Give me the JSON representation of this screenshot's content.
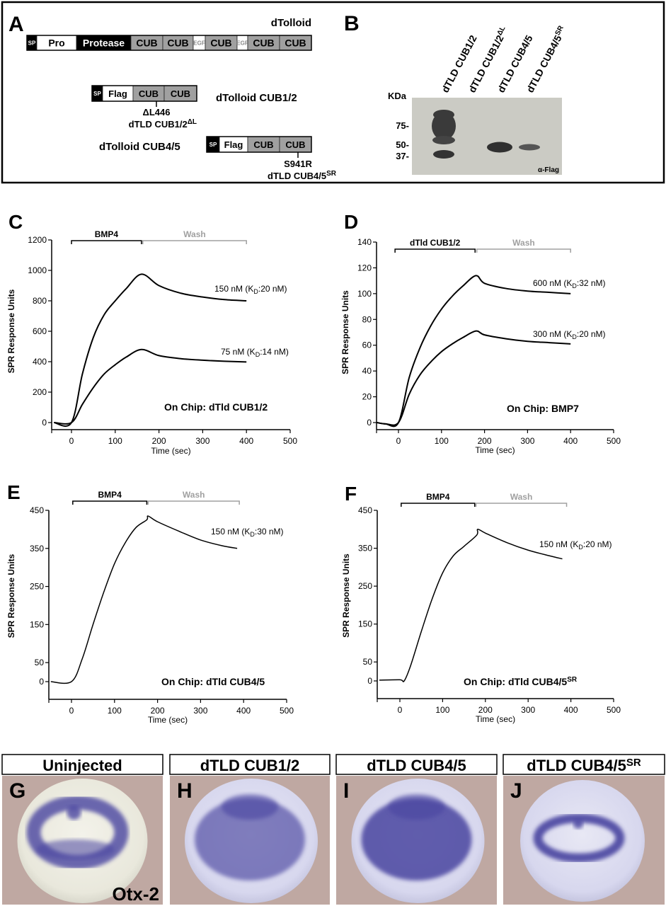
{
  "panel_letters": {
    "a": "A",
    "b": "B",
    "c": "C",
    "d": "D",
    "e": "E",
    "f": "F",
    "g": "G",
    "h": "H",
    "i": "I",
    "j": "J"
  },
  "panel_a": {
    "full_title": "dTolloid",
    "full_domains": [
      "SP",
      "Pro",
      "Protease",
      "CUB",
      "CUB",
      "EGF",
      "CUB",
      "EGF",
      "CUB",
      "CUB"
    ],
    "cub12_title": "dTolloid CUB1/2",
    "cub12_domains": [
      "SP",
      "Flag",
      "CUB",
      "CUB"
    ],
    "cub12_mutation": "ΔL446",
    "cub12_mutant_name": "dTLD CUB1/2",
    "cub12_mutant_sup": "ΔL",
    "cub45_title": "dTolloid CUB4/5",
    "cub45_domains": [
      "SP",
      "Flag",
      "CUB",
      "CUB"
    ],
    "cub45_mutation": "S941R",
    "cub45_mutant_name": "dTLD CUB4/5",
    "cub45_mutant_sup": "SR",
    "colors": {
      "signal_peptide": "#000000",
      "protease": "#000000",
      "pro": "#ffffff",
      "cub": "#a0a0a0",
      "egf": "#ffffff"
    }
  },
  "panel_b": {
    "lanes": [
      {
        "name": "dTLD CUB1/2",
        "sup": ""
      },
      {
        "name": "dTLD CUB1/2",
        "sup": "ΔL"
      },
      {
        "name": "dTLD CUB4/5",
        "sup": ""
      },
      {
        "name": "dTLD CUB4/5",
        "sup": "SR"
      }
    ],
    "unit_label": "KDa",
    "markers": [
      "75-",
      "50-",
      "37-"
    ],
    "antibody": "α-Flag"
  },
  "chart_data": [
    {
      "type": "line",
      "panel": "C",
      "xlabel": "Time (sec)",
      "ylabel": "SPR Response Units",
      "xlim": [
        -45,
        500
      ],
      "ylim": [
        0,
        1200
      ],
      "xticks": [
        "0",
        "100",
        "200",
        "300",
        "400",
        "500"
      ],
      "yticks": [
        "0",
        "200",
        "400",
        "600",
        "800",
        "1000",
        "1200"
      ],
      "injection": {
        "label": "BMP4",
        "range": [
          0,
          160
        ]
      },
      "wash": {
        "label": "Wash",
        "range": [
          163,
          400
        ]
      },
      "chip": {
        "text": "On Chip: dTld CUB1/2",
        "sup": ""
      },
      "series": [
        {
          "label": {
            "pre": "150 nM (K",
            "sub": "D",
            "post": ":20 nM)"
          },
          "points": [
            [
              -40,
              0
            ],
            [
              0,
              0
            ],
            [
              25,
              320
            ],
            [
              50,
              560
            ],
            [
              75,
              710
            ],
            [
              100,
              800
            ],
            [
              125,
              880
            ],
            [
              160,
              975
            ],
            [
              200,
              900
            ],
            [
              250,
              850
            ],
            [
              300,
              825
            ],
            [
              350,
              808
            ],
            [
              400,
              800
            ]
          ]
        },
        {
          "label": {
            "pre": "75 nM (K",
            "sub": "D",
            "post": ":14 nM)"
          },
          "points": [
            [
              -40,
              0
            ],
            [
              0,
              0
            ],
            [
              25,
              120
            ],
            [
              50,
              230
            ],
            [
              75,
              320
            ],
            [
              100,
              380
            ],
            [
              125,
              430
            ],
            [
              160,
              480
            ],
            [
              200,
              440
            ],
            [
              250,
              420
            ],
            [
              300,
              410
            ],
            [
              350,
              403
            ],
            [
              400,
              398
            ]
          ]
        }
      ]
    },
    {
      "type": "line",
      "panel": "D",
      "xlabel": "Time (sec)",
      "ylabel": "SPR Response Units",
      "xlim": [
        -50,
        500
      ],
      "ylim": [
        0,
        140
      ],
      "xticks": [
        "0",
        "100",
        "200",
        "300",
        "400",
        "500"
      ],
      "yticks": [
        "0",
        "20",
        "40",
        "60",
        "80",
        "100",
        "120",
        "140"
      ],
      "injection": {
        "label": "dTld CUB1/2",
        "range": [
          -8,
          178
        ]
      },
      "wash": {
        "label": "Wash",
        "range": [
          182,
          400
        ]
      },
      "chip": {
        "text": "On Chip: BMP7",
        "sup": ""
      },
      "series": [
        {
          "label": {
            "pre": "600 nM (K",
            "sub": "D",
            "post": ":32 nM)"
          },
          "points": [
            [
              -50,
              0
            ],
            [
              -30,
              -1
            ],
            [
              0,
              0
            ],
            [
              25,
              35
            ],
            [
              50,
              58
            ],
            [
              75,
              75
            ],
            [
              100,
              88
            ],
            [
              125,
              98
            ],
            [
              150,
              106
            ],
            [
              180,
              114
            ],
            [
              200,
              108
            ],
            [
              250,
              104
            ],
            [
              300,
              102
            ],
            [
              350,
              101
            ],
            [
              400,
              100
            ]
          ]
        },
        {
          "label": {
            "pre": "300 nM (K",
            "sub": "D",
            "post": ":20 nM)"
          },
          "points": [
            [
              -50,
              0
            ],
            [
              -30,
              -1
            ],
            [
              0,
              0
            ],
            [
              25,
              22
            ],
            [
              50,
              37
            ],
            [
              75,
              47
            ],
            [
              100,
              55
            ],
            [
              125,
              61
            ],
            [
              150,
              66
            ],
            [
              180,
              71
            ],
            [
              200,
              68
            ],
            [
              250,
              65
            ],
            [
              300,
              63
            ],
            [
              350,
              62
            ],
            [
              400,
              61
            ]
          ]
        }
      ]
    },
    {
      "type": "line",
      "panel": "E",
      "xlabel": "Time (sec)",
      "ylabel": "SPR Response Units",
      "xlim": [
        -50,
        500
      ],
      "ylim": [
        0,
        450
      ],
      "xticks": [
        "0",
        "100",
        "200",
        "300",
        "400",
        "500"
      ],
      "yticks": [
        "0",
        "50",
        "150",
        "250",
        "350",
        "450"
      ],
      "injection": {
        "label": "BMP4",
        "range": [
          3,
          175
        ]
      },
      "wash": {
        "label": "Wash",
        "range": [
          178,
          390
        ]
      },
      "chip": {
        "text": "On Chip: dTld CUB4/5",
        "sup": ""
      },
      "series": [
        {
          "label": {
            "pre": "150 nM (K",
            "sub": "D",
            "post": ":30 nM)"
          },
          "points": [
            [
              -48,
              0
            ],
            [
              0,
              0
            ],
            [
              25,
              60
            ],
            [
              50,
              150
            ],
            [
              75,
              235
            ],
            [
              100,
              310
            ],
            [
              125,
              365
            ],
            [
              150,
              405
            ],
            [
              175,
              425
            ],
            [
              178,
              435
            ],
            [
              200,
              420
            ],
            [
              250,
              395
            ],
            [
              300,
              372
            ],
            [
              350,
              357
            ],
            [
              385,
              350
            ]
          ]
        }
      ]
    },
    {
      "type": "line",
      "panel": "F",
      "xlabel": "Time (sec)",
      "ylabel": "SPR Response Units",
      "xlim": [
        -50,
        500
      ],
      "ylim": [
        0,
        450
      ],
      "xticks": [
        "0",
        "100",
        "200",
        "300",
        "400",
        "500"
      ],
      "yticks": [
        "0",
        "50",
        "150",
        "250",
        "350",
        "450"
      ],
      "injection": {
        "label": "BMP4",
        "range": [
          3,
          175
        ]
      },
      "wash": {
        "label": "Wash",
        "range": [
          178,
          390
        ]
      },
      "chip": {
        "text": "On Chip: dTld CUB4/5",
        "sup": "SR"
      },
      "series": [
        {
          "label": {
            "pre": "150 nM (K",
            "sub": "D",
            "post": ":20 nM)"
          },
          "points": [
            [
              -48,
              2
            ],
            [
              0,
              3
            ],
            [
              10,
              0
            ],
            [
              25,
              40
            ],
            [
              50,
              130
            ],
            [
              75,
              215
            ],
            [
              100,
              285
            ],
            [
              125,
              330
            ],
            [
              150,
              355
            ],
            [
              180,
              385
            ],
            [
              182,
              400
            ],
            [
              200,
              390
            ],
            [
              250,
              365
            ],
            [
              300,
              345
            ],
            [
              350,
              330
            ],
            [
              380,
              322
            ]
          ]
        }
      ]
    }
  ],
  "embryos": [
    {
      "title": "Uninjected",
      "sup": "",
      "marker": "Otx-2"
    },
    {
      "title": "dTLD CUB1/2",
      "sup": ""
    },
    {
      "title": "dTLD CUB4/5",
      "sup": ""
    },
    {
      "title": "dTLD CUB4/5",
      "sup": "SR"
    }
  ],
  "colors": {
    "stain": "#4a45a0",
    "background": "#bfa8a2",
    "wash": "#a0a0a0"
  }
}
